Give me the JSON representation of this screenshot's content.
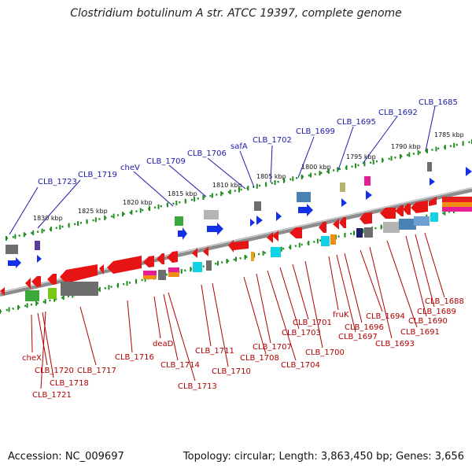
{
  "title": "Clostridium botulinum A str. ATCC 19397, complete genome",
  "footer": {
    "accession": "Accession: NC_009697",
    "summary": "Topology: circular; Length: 3,863,450 bp; Genes: 3,656"
  },
  "colors": {
    "backbone": "#8c8c8c",
    "tick": "#1e8c1e",
    "forward_gene": "#1430e6",
    "reverse_gene": "#e61414",
    "label_blue": "#1a1aa8",
    "label_red": "#b00000"
  },
  "scale_labels": [
    "1830 kbp",
    "1825 kbp",
    "1820 kbp",
    "1815 kbp",
    "1810 kbp",
    "1805 kbp",
    "1800 kbp",
    "1795 kbp",
    "1790 kbp",
    "1785 kbp"
  ],
  "forward_labels": [
    "CLB_1723",
    "CLB_1719",
    "cheV",
    "CLB_1709",
    "CLB_1706",
    "safA",
    "CLB_1702",
    "CLB_1699",
    "CLB_1695",
    "CLB_1692",
    "CLB_1685"
  ],
  "reverse_labels": [
    "cheX",
    "CLB_1720",
    "CLB_1718",
    "CLB_1721",
    "CLB_1717",
    "CLB_1716",
    "deaD",
    "CLB_1714",
    "CLB_1713",
    "CLB_1711",
    "CLB_1710",
    "CLB_1708",
    "CLB_1707",
    "CLB_1704",
    "CLB_1703",
    "CLB_1701",
    "CLB_1700",
    "fruK",
    "CLB_1697",
    "CLB_1696",
    "CLB_1694",
    "CLB_1693",
    "CLB_1691",
    "CLB_1690",
    "CLB_1689",
    "CLB_1688"
  ]
}
